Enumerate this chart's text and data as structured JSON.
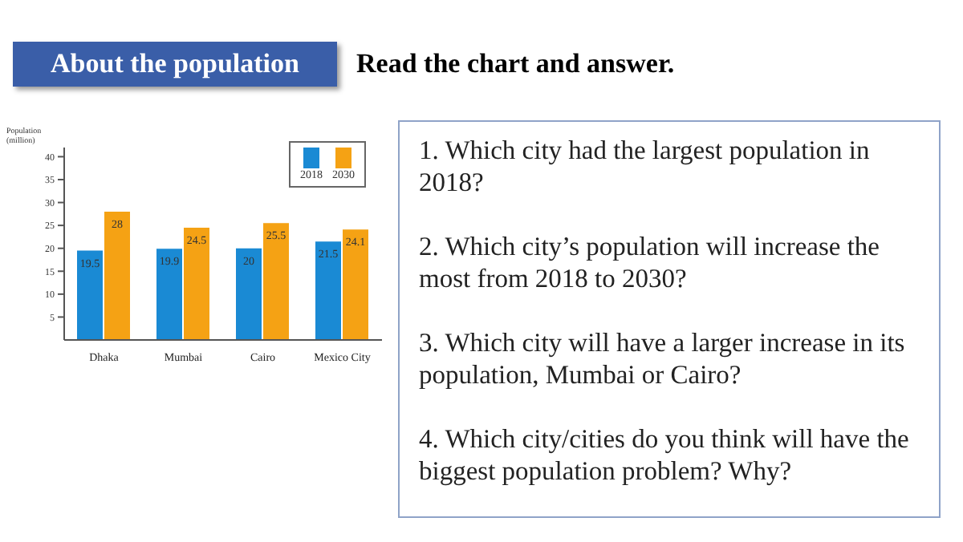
{
  "chart_data": {
    "type": "bar",
    "title": "About the population",
    "subtitle": "Read the chart and answer.",
    "ylabel": "Population (million)",
    "categories": [
      "Dhaka",
      "Mumbai",
      "Cairo",
      "Mexico City"
    ],
    "series": [
      {
        "name": "2018",
        "color": "#1a8ad4",
        "values": [
          19.5,
          19.9,
          20,
          21.5
        ]
      },
      {
        "name": "2030",
        "color": "#f5a214",
        "values": [
          28,
          24.5,
          25.5,
          24.1
        ]
      }
    ],
    "ylim": [
      0,
      42
    ],
    "yticks": [
      5,
      10,
      15,
      20,
      25,
      30,
      35,
      40
    ],
    "grid": false,
    "legend": "top right",
    "data_labels": true,
    "annotations": [
      "1. Which city had the largest population in 2018?",
      "2. Which city’s population will increase the most from 2018 to 2030?",
      "3. Which city will have a larger increase in its population, Mumbai or Cairo?",
      "4. Which city/cities do you think will have the biggest population problem? Why?"
    ]
  }
}
